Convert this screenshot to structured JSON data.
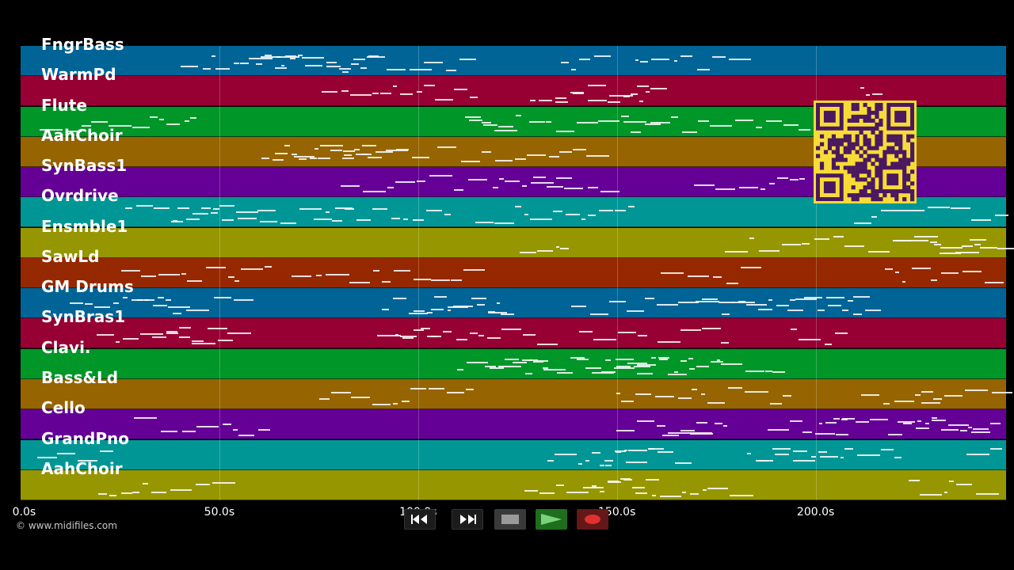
{
  "tracks": [
    {
      "name": "FngrBass",
      "color": "#006496"
    },
    {
      "name": "WarmPd",
      "color": "#960032"
    },
    {
      "name": "Flute",
      "color": "#009628"
    },
    {
      "name": "AahChoir",
      "color": "#966400"
    },
    {
      "name": "SynBass1",
      "color": "#640096"
    },
    {
      "name": "Ovrdrive",
      "color": "#009696"
    },
    {
      "name": "Ensmble1",
      "color": "#969600"
    },
    {
      "name": "SawLd",
      "color": "#962800"
    },
    {
      "name": "GM Drums",
      "color": "#006496"
    },
    {
      "name": "SynBras1",
      "color": "#960032"
    },
    {
      "name": "Clavi.",
      "color": "#009628"
    },
    {
      "name": "Bass&Ld",
      "color": "#966400"
    },
    {
      "name": "Cello",
      "color": "#640096"
    },
    {
      "name": "GrandPno",
      "color": "#009696"
    },
    {
      "name": "AahChoir",
      "color": "#969600"
    }
  ],
  "time_axis": {
    "ticks": [
      "0.0s",
      "50.0s",
      "100.0s",
      "150.0s",
      "200.0s"
    ],
    "tick_seconds": [
      0,
      50,
      100,
      150,
      200
    ]
  },
  "credit": "© www.midifiles.com",
  "transport": {
    "rewind_icon": "rewind-icon",
    "fast_forward_icon": "fast-forward-icon",
    "stop_icon": "stop-icon",
    "play_icon": "play-icon",
    "record_icon": "record-icon"
  },
  "qr_code_icon": "qr-code-icon"
}
